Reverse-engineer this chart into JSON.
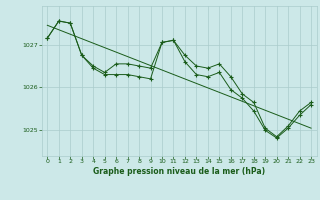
{
  "title": "Graphe pression niveau de la mer (hPa)",
  "bg_color": "#cce8e8",
  "grid_color": "#aacccc",
  "line_color": "#1a5c1a",
  "xlim": [
    -0.5,
    23.5
  ],
  "ylim": [
    1024.4,
    1027.9
  ],
  "yticks": [
    1025,
    1026,
    1027
  ],
  "xticks": [
    0,
    1,
    2,
    3,
    4,
    5,
    6,
    7,
    8,
    9,
    10,
    11,
    12,
    13,
    14,
    15,
    16,
    17,
    18,
    19,
    20,
    21,
    22,
    23
  ],
  "hours": [
    0,
    1,
    2,
    3,
    4,
    5,
    6,
    7,
    8,
    9,
    10,
    11,
    12,
    13,
    14,
    15,
    16,
    17,
    18,
    19,
    20,
    21,
    22,
    23
  ],
  "series1": [
    1027.15,
    1027.55,
    1027.5,
    1026.75,
    1026.5,
    1026.35,
    1026.55,
    1026.55,
    1026.5,
    1026.45,
    1027.05,
    1027.1,
    1026.75,
    1026.5,
    1026.45,
    1026.55,
    1026.25,
    1025.85,
    1025.65,
    1025.05,
    1024.85,
    1025.1,
    1025.45,
    1025.65
  ],
  "series2": [
    1027.15,
    1027.55,
    1027.5,
    1026.75,
    1026.45,
    1026.3,
    1026.3,
    1026.3,
    1026.25,
    1026.2,
    1027.05,
    1027.1,
    1026.6,
    1026.3,
    1026.25,
    1026.35,
    1025.95,
    1025.75,
    1025.45,
    1025.0,
    1024.82,
    1025.05,
    1025.35,
    1025.6
  ],
  "trend_x": [
    0,
    23
  ],
  "trend_y": [
    1027.45,
    1025.05
  ]
}
